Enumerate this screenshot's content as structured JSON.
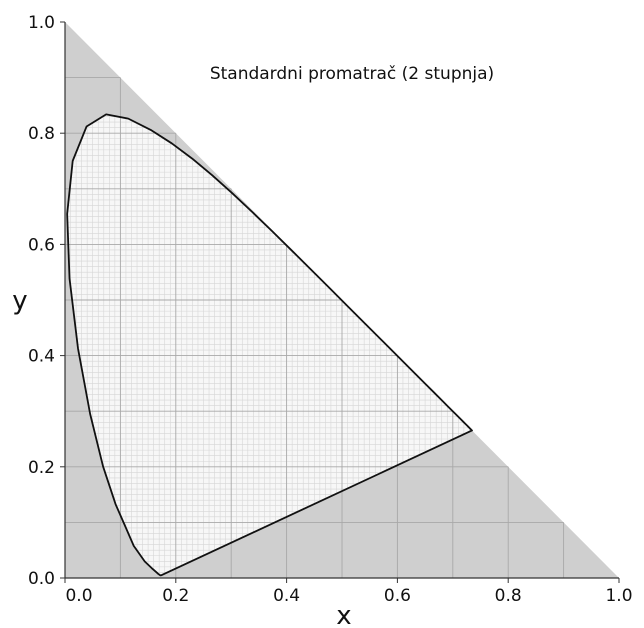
{
  "chart_data": {
    "type": "line",
    "title": "Standardni promatrač (2 stupnja)",
    "xlabel": "x",
    "ylabel": "y",
    "xlim": [
      0,
      1
    ],
    "ylim": [
      0,
      1
    ],
    "grid": true,
    "x_ticks": [
      "0.0",
      "0.2",
      "0.4",
      "0.6",
      "0.8",
      "1.0"
    ],
    "y_ticks": [
      "0.0",
      "0.2",
      "0.4",
      "0.6",
      "0.8",
      "1.0"
    ],
    "colors": {
      "outside_fill": "#cfcfcf",
      "inside_fill": "#f7f7f7",
      "grid_major": "#a8a8a8",
      "grid_minor": "#d6d6d6",
      "curve": "#111111"
    },
    "series": [
      {
        "x": [
          0.1741,
          0.1738,
          0.1721,
          0.1689,
          0.1644,
          0.1566,
          0.144,
          0.1241,
          0.0913,
          0.0687,
          0.0454,
          0.0235,
          0.0082,
          0.0039,
          0.0139,
          0.0389,
          0.0743,
          0.1142,
          0.1547,
          0.1929,
          0.2296,
          0.2658,
          0.3016,
          0.3373,
          0.3731,
          0.4087,
          0.4441,
          0.4788,
          0.5125,
          0.5448,
          0.5752,
          0.6029,
          0.627,
          0.6482,
          0.6658,
          0.6801,
          0.6915,
          0.7006,
          0.7079,
          0.714,
          0.719,
          0.723,
          0.726,
          0.7283,
          0.73,
          0.7311,
          0.732,
          0.7327,
          0.7334,
          0.734,
          0.7344,
          0.7347
        ],
        "y": [
          0.005,
          0.0049,
          0.0048,
          0.0069,
          0.0109,
          0.0177,
          0.0297,
          0.0578,
          0.1327,
          0.2007,
          0.295,
          0.4127,
          0.5384,
          0.6548,
          0.7502,
          0.812,
          0.8338,
          0.8262,
          0.8059,
          0.7816,
          0.7543,
          0.7243,
          0.6923,
          0.6589,
          0.6245,
          0.5896,
          0.5547,
          0.5202,
          0.4866,
          0.4544,
          0.4242,
          0.3965,
          0.3725,
          0.3514,
          0.334,
          0.3197,
          0.3083,
          0.2993,
          0.292,
          0.2859,
          0.2809,
          0.277,
          0.274,
          0.2717,
          0.27,
          0.2689,
          0.268,
          0.2673,
          0.2666,
          0.266,
          0.2656,
          0.2653
        ]
      }
    ]
  }
}
